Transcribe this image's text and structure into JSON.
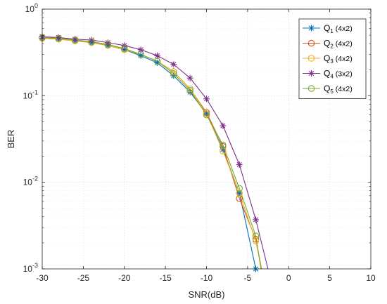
{
  "chart_data": {
    "type": "line",
    "xlabel": "SNR(dB)",
    "ylabel": "BER",
    "xlim": [
      -30,
      10
    ],
    "ylim": [
      0.001,
      1
    ],
    "yscale": "log",
    "grid": true,
    "legend_position": "top-right",
    "x_ticks": [
      "-30",
      "-25",
      "-20",
      "-15",
      "-10",
      "-5",
      "0",
      "5",
      "10"
    ],
    "y_ticks": [
      {
        "base": "10",
        "exp": "0"
      },
      {
        "base": "10",
        "exp": "-1"
      },
      {
        "base": "10",
        "exp": "-2"
      },
      {
        "base": "10",
        "exp": "-3"
      }
    ],
    "series": [
      {
        "name": "Q",
        "subscript": "1",
        "dims": "(4x2)",
        "color": "#0072BD",
        "marker": "star",
        "x": [
          -30,
          -28,
          -26,
          -24,
          -22,
          -20,
          -18,
          -16,
          -14,
          -12,
          -10,
          -8,
          -6,
          -4,
          -3.5
        ],
        "y": [
          0.46,
          0.45,
          0.43,
          0.41,
          0.38,
          0.34,
          0.29,
          0.24,
          0.17,
          0.11,
          0.062,
          0.024,
          0.0075,
          0.001,
          0.00065
        ]
      },
      {
        "name": "Q",
        "subscript": "2",
        "dims": "(4x2)",
        "color": "#D95319",
        "marker": "circle",
        "x": [
          -30,
          -28,
          -26,
          -24,
          -22,
          -20,
          -18,
          -16,
          -14,
          -12,
          -10,
          -8,
          -6,
          -4,
          -3.2
        ],
        "y": [
          0.47,
          0.46,
          0.44,
          0.42,
          0.39,
          0.35,
          0.3,
          0.25,
          0.19,
          0.12,
          0.064,
          0.026,
          0.0065,
          0.0022,
          0.0009
        ]
      },
      {
        "name": "Q",
        "subscript": "3",
        "dims": "(4x2)",
        "color": "#EDB120",
        "marker": "circle",
        "x": [
          -30,
          -28,
          -26,
          -24,
          -22,
          -20,
          -18,
          -16,
          -14,
          -12,
          -10,
          -8,
          -6,
          -4,
          -3.2
        ],
        "y": [
          0.46,
          0.45,
          0.43,
          0.41,
          0.38,
          0.34,
          0.3,
          0.25,
          0.19,
          0.12,
          0.062,
          0.023,
          0.0075,
          0.0021,
          0.0009
        ]
      },
      {
        "name": "Q",
        "subscript": "4",
        "dims": "(3x2)",
        "color": "#7E2F8E",
        "marker": "star",
        "x": [
          -30,
          -28,
          -26,
          -24,
          -22,
          -20,
          -18,
          -16,
          -14,
          -12,
          -10,
          -8,
          -6,
          -4,
          -2.4
        ],
        "y": [
          0.48,
          0.47,
          0.45,
          0.44,
          0.41,
          0.38,
          0.34,
          0.29,
          0.23,
          0.16,
          0.092,
          0.045,
          0.016,
          0.0037,
          0.0009
        ]
      },
      {
        "name": "Q",
        "subscript": "5",
        "dims": "(4x2)",
        "color": "#77AC30",
        "marker": "circle",
        "x": [
          -30,
          -28,
          -26,
          -24,
          -22,
          -20,
          -18,
          -16,
          -14,
          -12,
          -10,
          -8,
          -6,
          -4,
          -3.3
        ],
        "y": [
          0.47,
          0.46,
          0.44,
          0.42,
          0.39,
          0.35,
          0.3,
          0.25,
          0.18,
          0.115,
          0.06,
          0.027,
          0.0085,
          0.0024,
          0.0009
        ]
      }
    ]
  }
}
